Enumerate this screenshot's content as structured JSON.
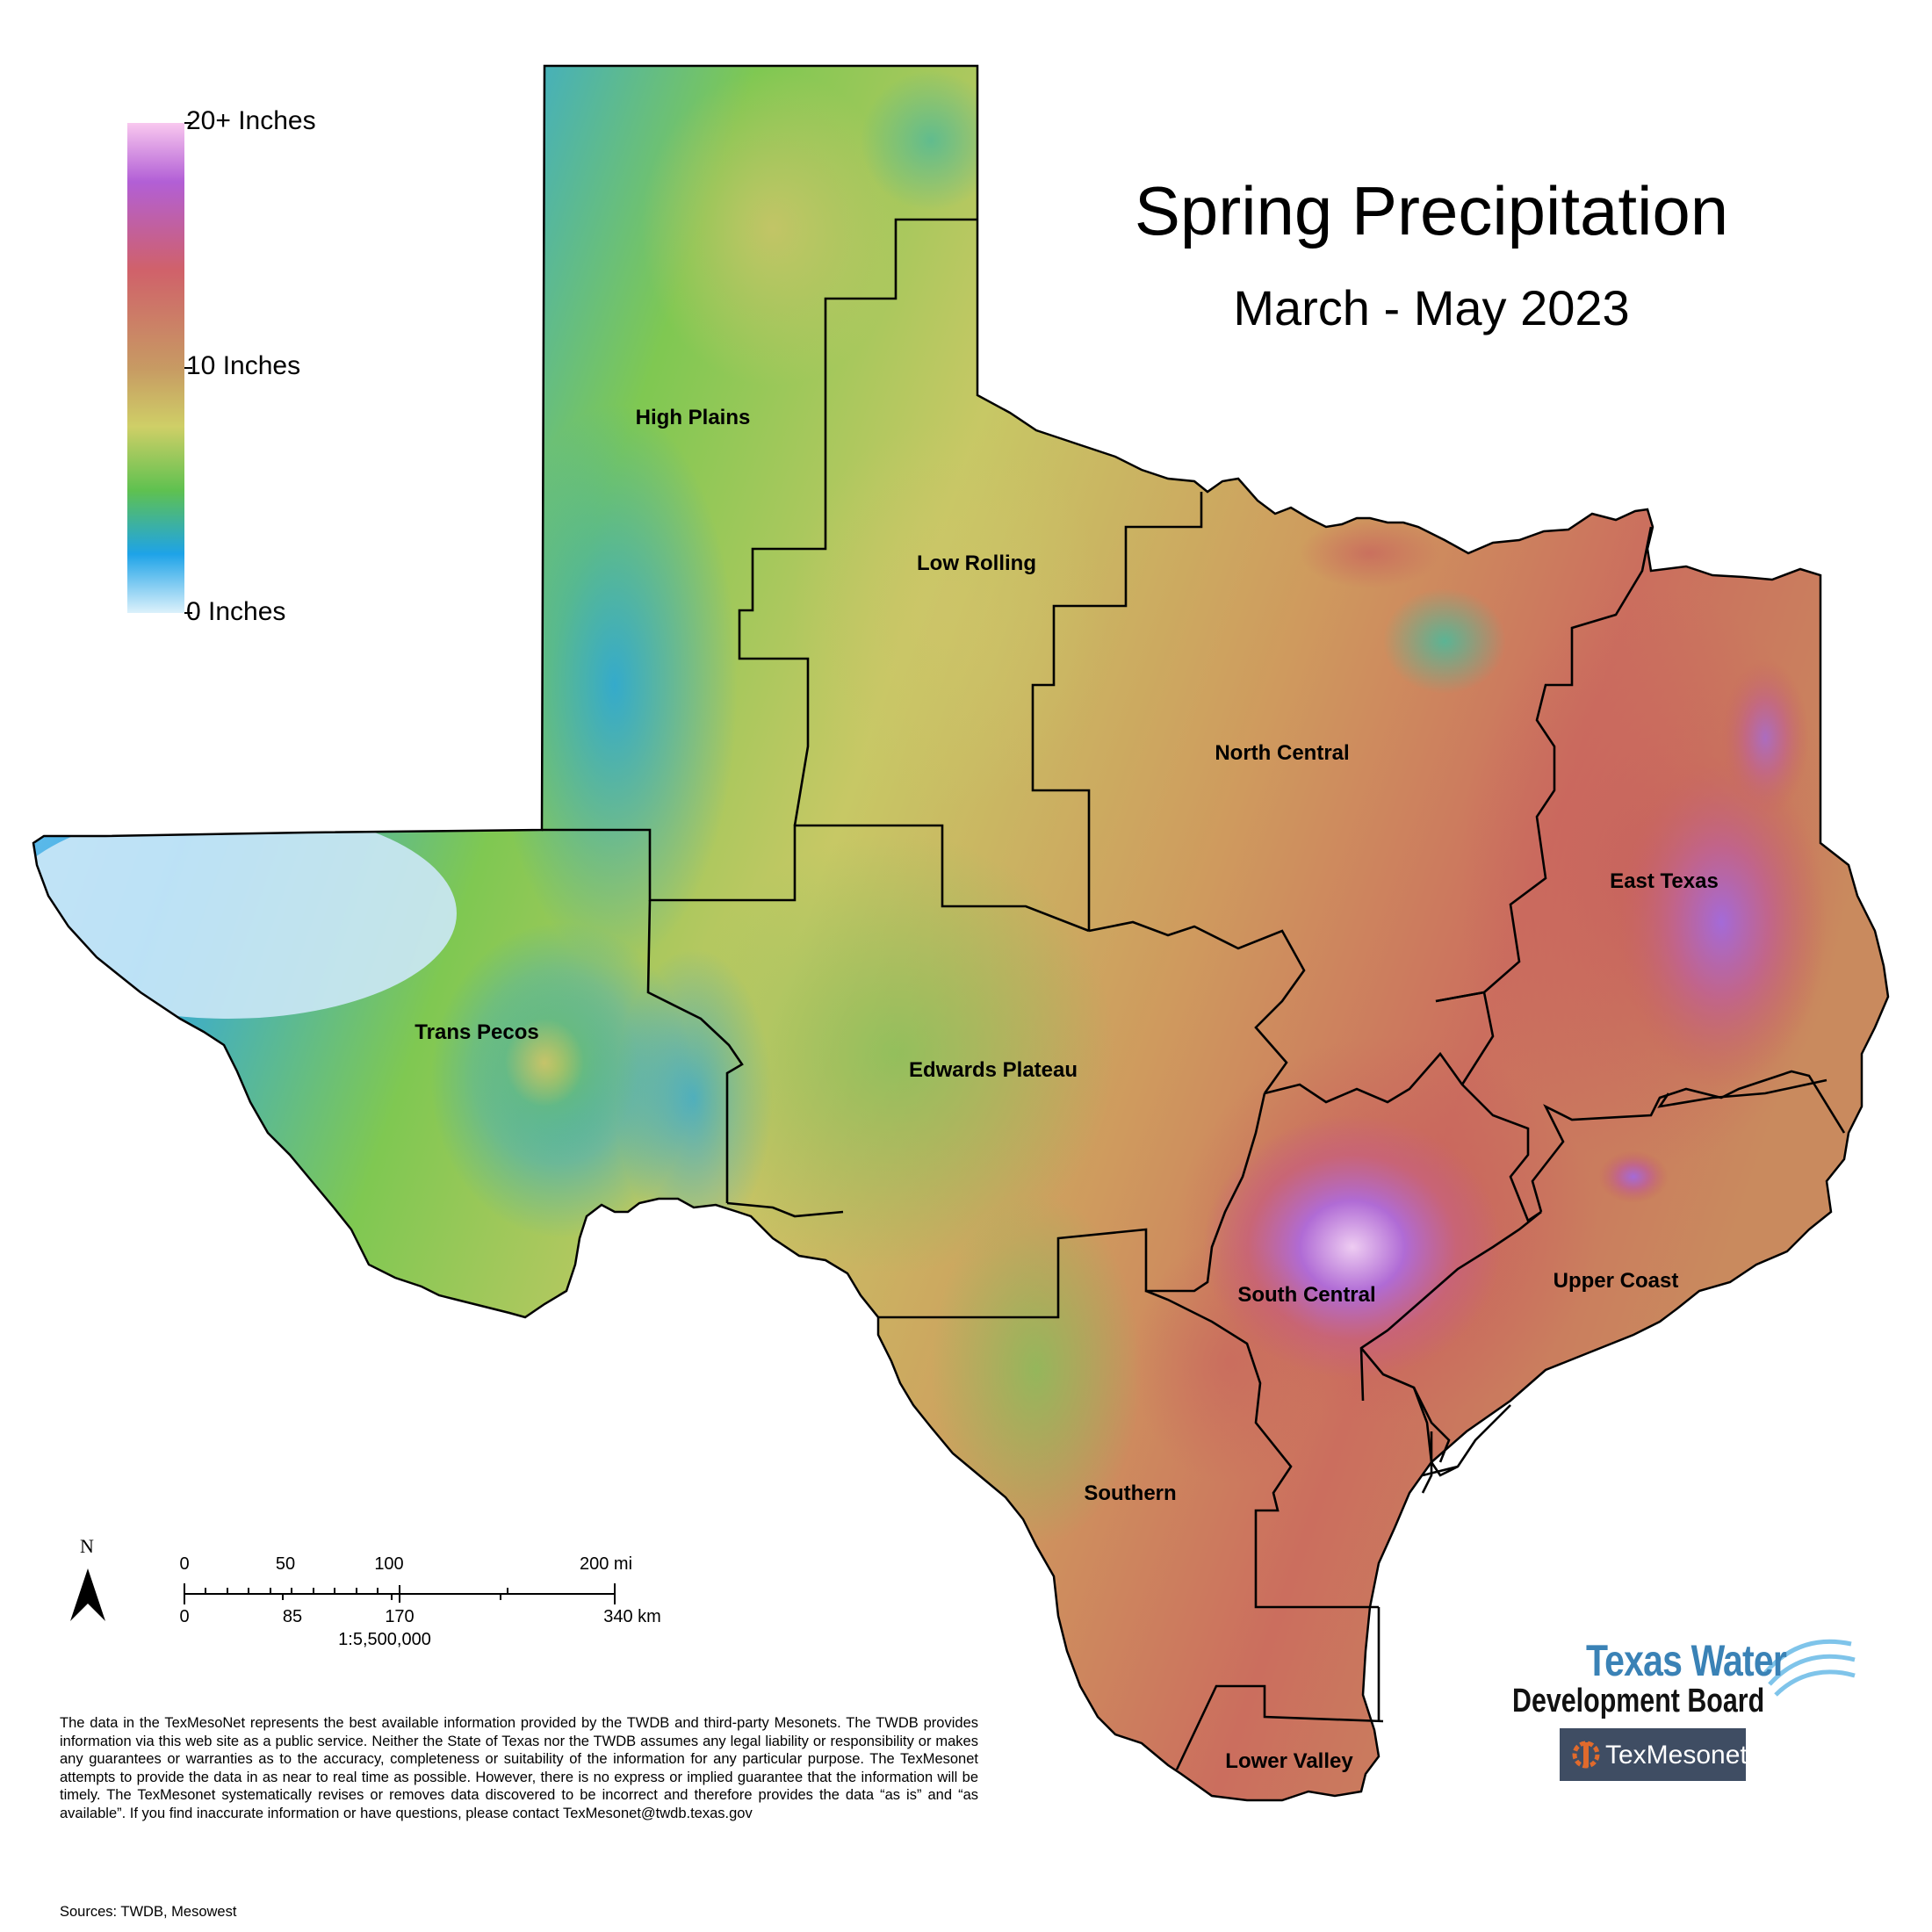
{
  "title": "Spring Precipitation",
  "subtitle": "March - May 2023",
  "legend": {
    "labels": [
      "20+ Inches",
      "10 Inches",
      "0 Inches"
    ],
    "colors": [
      "#f9c8ef",
      "#b25fd6",
      "#d0616a",
      "#c79a63",
      "#cfcf67",
      "#5fc150",
      "#1ea3e8",
      "#dcf1fb"
    ]
  },
  "regions": [
    {
      "name": "High Plains",
      "value_class": "low-mid"
    },
    {
      "name": "Low Rolling",
      "value_class": "mid"
    },
    {
      "name": "North Central",
      "value_class": "mid-high"
    },
    {
      "name": "East Texas",
      "value_class": "high"
    },
    {
      "name": "Trans Pecos",
      "value_class": "low"
    },
    {
      "name": "Edwards Plateau",
      "value_class": "mid"
    },
    {
      "name": "South Central",
      "value_class": "high"
    },
    {
      "name": "Upper Coast",
      "value_class": "high"
    },
    {
      "name": "Southern",
      "value_class": "mid"
    },
    {
      "name": "Lower Valley",
      "value_class": "mid-high"
    }
  ],
  "scale_bar": {
    "miles": [
      "0",
      "50",
      "100",
      "200 mi"
    ],
    "km": [
      "0",
      "85",
      "170",
      "340 km"
    ],
    "ratio": "1:5,500,000"
  },
  "north_arrow": "N",
  "disclaimer": "The data in the TexMesoNet represents the best available information provided by the TWDB and third-party Mesonets. The TWDB provides information via this web site as a public service. Neither the State of Texas nor the TWDB assumes any legal liability or responsibility or makes any guarantees or warranties as to the accuracy, completeness or suitability of the information for any particular purpose. The TexMesonet attempts to provide the data in as near to real time as possible. However, there is no express or implied guarantee that the information will be timely. The TexMesonet systematically revises or removes data discovered to be incorrect and therefore provides the data “as is” and “as available”. If you find inaccurate information or have questions, please contact TexMesonet@twdb.texas.gov",
  "sources": "Sources: TWDB, Mesowest",
  "logos": {
    "twdb_line1": "Texas Water",
    "twdb_line2": "Development Board",
    "mesonet": "TexMesonet"
  }
}
